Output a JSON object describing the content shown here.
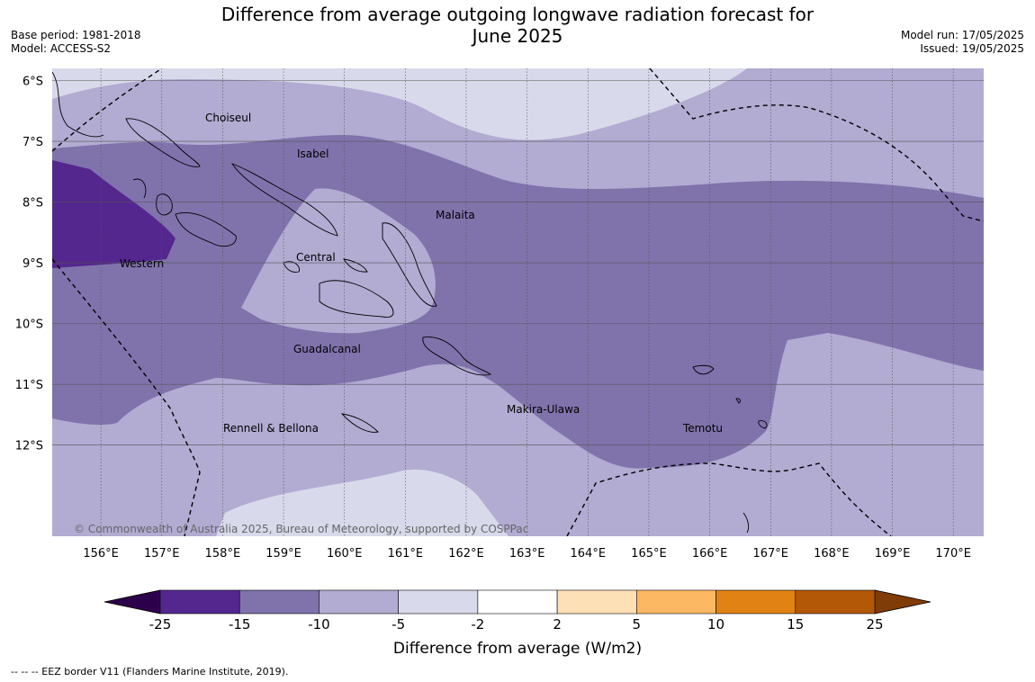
{
  "header": {
    "title_line1": "Difference from average outgoing longwave radiation forecast for",
    "title_line2": "June 2025",
    "base_period": "Base period: 1981-2018",
    "model": "Model: ACCESS-S2",
    "model_run": "Model run: 17/05/2025",
    "issued": "Issued: 19/05/2025"
  },
  "map": {
    "lat_labels": [
      "6°S",
      "7°S",
      "8°S",
      "9°S",
      "10°S",
      "11°S",
      "12°S"
    ],
    "lat_values": [
      6,
      7,
      8,
      9,
      10,
      11,
      12
    ],
    "lon_labels": [
      "156°E",
      "157°E",
      "158°E",
      "159°E",
      "160°E",
      "161°E",
      "162°E",
      "163°E",
      "164°E",
      "165°E",
      "166°E",
      "167°E",
      "168°E",
      "169°E",
      "170°E"
    ],
    "lon_values": [
      156,
      157,
      158,
      159,
      160,
      161,
      162,
      163,
      164,
      165,
      166,
      167,
      168,
      169,
      170
    ],
    "lon_range": [
      155.2,
      170.5
    ],
    "lat_range": [
      5.8,
      13.5
    ],
    "province_labels": [
      "Choiseul",
      "Isabel",
      "Malaita",
      "Western",
      "Central",
      "Guadalcanal",
      "Rennell & Bellona",
      "Makira-Ulawa",
      "Temotu"
    ],
    "copyright": "© Commonwealth of Australia 2025, Bureau of Meteorology, supported by COSPPac",
    "fill_colors": {
      "c_neg25_neg15": "#54278f",
      "c_neg15_neg10": "#8073ac",
      "c_neg10_neg5": "#b2abd2",
      "c_neg5_neg2": "#d8daeb"
    }
  },
  "colorbar": {
    "tick_labels": [
      "-25",
      "-15",
      "-10",
      "-5",
      "-2",
      "2",
      "5",
      "10",
      "15",
      "25"
    ],
    "colors": [
      "#54278f",
      "#8073ac",
      "#b2abd2",
      "#d8daeb",
      "#ffffff",
      "#fee0b6",
      "#fdb863",
      "#e08214",
      "#b35806"
    ],
    "extend_low_color": "#2d004b",
    "extend_high_color": "#7f3b08",
    "label": "Difference from average (W/m2)"
  },
  "footer": {
    "eez_note": "--  --  -- EEZ border V11 (Flanders Marine Institute, 2019)."
  }
}
